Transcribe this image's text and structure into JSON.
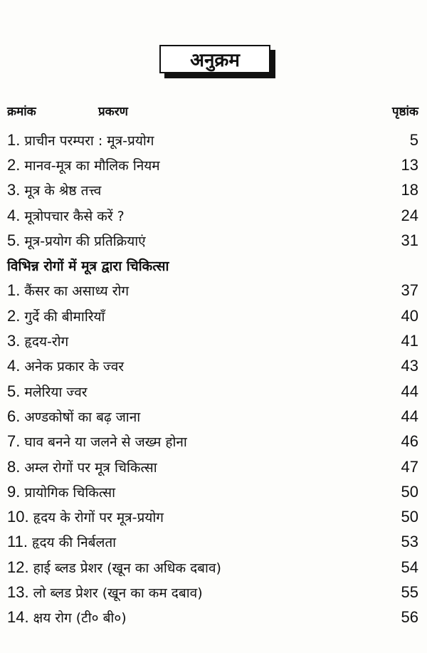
{
  "title": "अनुक्रम",
  "header": {
    "serial": "क्रमांक",
    "chapter": "प्रकरण",
    "page": "पृष्ठांक"
  },
  "part1": [
    {
      "num": "1.",
      "title": "प्राचीन परम्परा : मूत्र-प्रयोग",
      "page": "5"
    },
    {
      "num": "2.",
      "title": "मानव-मूत्र का मौलिक नियम",
      "page": "13"
    },
    {
      "num": "3.",
      "title": "मूत्र के श्रेष्ठ तत्त्व",
      "page": "18"
    },
    {
      "num": "4.",
      "title": "मूत्रोपचार कैसे करें ?",
      "page": "24"
    },
    {
      "num": "5.",
      "title": "मूत्र-प्रयोग की प्रतिक्रियाएं",
      "page": "31"
    }
  ],
  "section_heading": "विभिन्न रोगों में मूत्र द्वारा चिकित्सा",
  "part2": [
    {
      "num": "1.",
      "title": "कैंसर का असाध्य रोग",
      "page": "37"
    },
    {
      "num": "2.",
      "title": "गुर्दे की बीमारियाँ",
      "page": "40"
    },
    {
      "num": "3.",
      "title": "हृदय-रोग",
      "page": "41"
    },
    {
      "num": "4.",
      "title": "अनेक प्रकार के ज्वर",
      "page": "43"
    },
    {
      "num": "5.",
      "title": "मलेरिया ज्वर",
      "page": "44"
    },
    {
      "num": "6.",
      "title": "अण्डकोषों का बढ़ जाना",
      "page": "44"
    },
    {
      "num": "7.",
      "title": "घाव बनने या जलने से जख्म होना",
      "page": "46"
    },
    {
      "num": "8.",
      "title": "अम्ल रोगों पर मूत्र चिकित्सा",
      "page": "47"
    },
    {
      "num": "9.",
      "title": "प्रायोगिक चिकित्सा",
      "page": "50"
    },
    {
      "num": "10.",
      "title": "हृदय के रोगों पर मूत्र-प्रयोग",
      "page": "50"
    },
    {
      "num": "11.",
      "title": "हृदय की निर्बलता",
      "page": "53"
    },
    {
      "num": "12.",
      "title": "हाई ब्लड प्रेशर (खून का अधिक दबाव)",
      "page": "54"
    },
    {
      "num": "13.",
      "title": "लो ब्लड प्रेशर (खून का कम दबाव)",
      "page": "55"
    },
    {
      "num": "14.",
      "title": "क्षय रोग (टी० बी०)",
      "page": "56"
    }
  ]
}
